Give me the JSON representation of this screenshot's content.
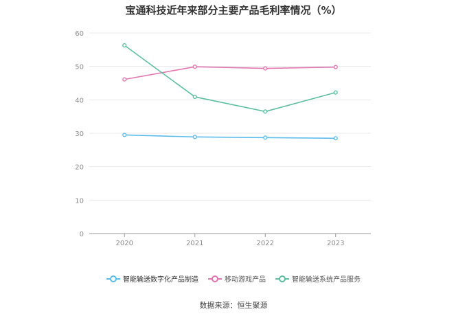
{
  "chart_data": {
    "type": "line",
    "title": "宝通科技近年来部分主要产品毛利率情况（%）",
    "categories": [
      "2020",
      "2021",
      "2022",
      "2023"
    ],
    "ylim": [
      0,
      60
    ],
    "yticks": [
      "0",
      "10",
      "20",
      "30",
      "40",
      "50",
      "60"
    ],
    "grid": true,
    "legend_position": "bottom",
    "series": [
      {
        "name": "智能输送数字化产品制造",
        "color": "#5bbcec",
        "values": [
          29.5,
          28.9,
          28.7,
          28.5
        ]
      },
      {
        "name": "移动游戏产品",
        "color": "#e075b0",
        "values": [
          46.1,
          49.9,
          49.4,
          49.8
        ]
      },
      {
        "name": "智能输送系统产品服务",
        "color": "#5cbea0",
        "values": [
          56.3,
          40.9,
          36.5,
          42.2
        ]
      }
    ],
    "source": "数据来源：恒生聚源"
  }
}
